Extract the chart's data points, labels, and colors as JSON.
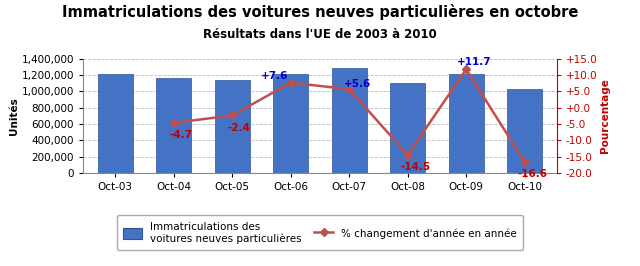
{
  "title": "Immatriculations des voitures neuves particulières en octobre",
  "subtitle": "Résultats dans l'UE de 2003 à 2010",
  "ylabel_left": "Unités",
  "ylabel_right": "Pourcentage",
  "categories": [
    "Oct-03",
    "Oct-04",
    "Oct-05",
    "Oct-06",
    "Oct-07",
    "Oct-08",
    "Oct-09",
    "Oct-10"
  ],
  "bar_values": [
    1215000,
    1165000,
    1135000,
    1210000,
    1290000,
    1105000,
    1215000,
    1030000
  ],
  "line_values": [
    null,
    -4.7,
    -2.4,
    7.6,
    5.6,
    -14.5,
    11.7,
    -16.6
  ],
  "line_labels": [
    "",
    "-4.7",
    "-2.4",
    "+7.6",
    "+5.6",
    "-14.5",
    "+11.7",
    "-16.6"
  ],
  "bar_color": "#4472C4",
  "bar_edge_color": "#2F5496",
  "line_color": "#C0504D",
  "line_marker": "D",
  "ylim_left": [
    0,
    1400000
  ],
  "ylim_right": [
    -20.0,
    15.0
  ],
  "yticks_left": [
    0,
    200000,
    400000,
    600000,
    800000,
    1000000,
    1200000,
    1400000
  ],
  "yticks_right": [
    -20.0,
    -15.0,
    -10.0,
    -5.0,
    0.0,
    5.0,
    10.0,
    15.0
  ],
  "ytick_labels_right": [
    "-20.0",
    "-15.0",
    "-10.0",
    "-5.0",
    "+0.0",
    "+5.0",
    "+10.0",
    "+15.0"
  ],
  "grid_color": "#BEBEBE",
  "background_color": "#FFFFFF",
  "legend_bar_label": "Immatriculations des\nvoitures neuves particulières",
  "legend_line_label": "% changement d'année en année",
  "title_fontsize": 10.5,
  "subtitle_fontsize": 8.5,
  "axis_label_fontsize": 7.5,
  "tick_fontsize": 7.5,
  "annotation_fontsize": 7.5
}
